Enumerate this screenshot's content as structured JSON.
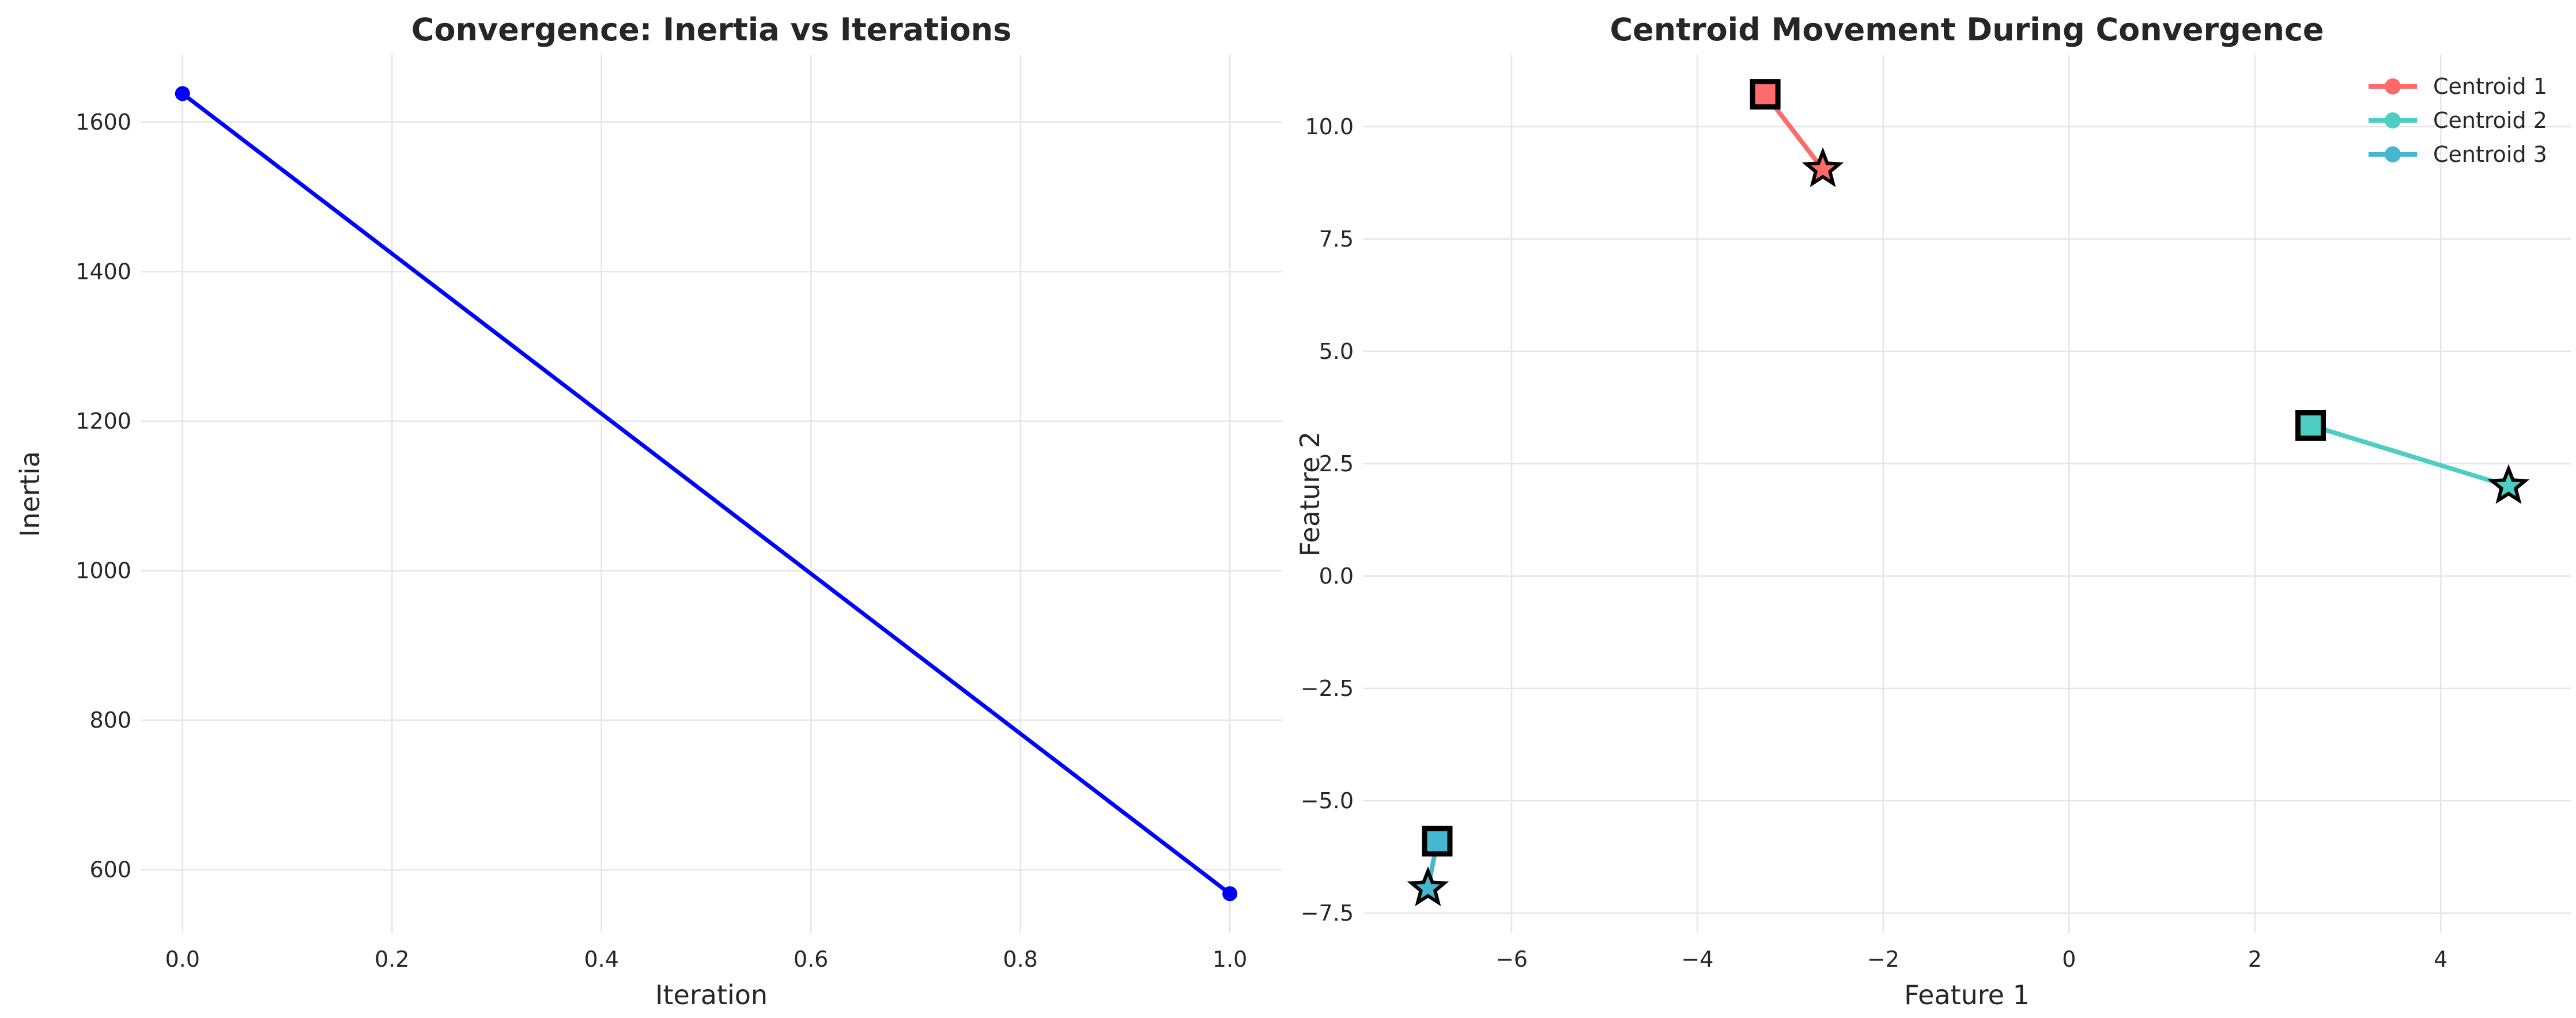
{
  "chart_data": [
    {
      "type": "line",
      "title": "Convergence: Inertia vs Iterations",
      "xlabel": "Iteration",
      "ylabel": "Inertia",
      "xlim": [
        -0.04,
        1.05
      ],
      "ylim": [
        515,
        1690
      ],
      "xticks": [
        "0.0",
        "0.2",
        "0.4",
        "0.6",
        "0.8",
        "1.0"
      ],
      "xtick_values": [
        0,
        0.2,
        0.4,
        0.6,
        0.8,
        1.0
      ],
      "yticks": [
        "600",
        "800",
        "1000",
        "1200",
        "1400",
        "1600"
      ],
      "ytick_values": [
        600,
        800,
        1000,
        1200,
        1400,
        1600
      ],
      "grid": true,
      "series": [
        {
          "color": "#0000ff",
          "marker": "circle",
          "x": [
            0,
            1
          ],
          "y": [
            1638,
            568
          ]
        }
      ]
    },
    {
      "type": "line",
      "title": "Centroid Movement During Convergence",
      "xlabel": "Feature 1",
      "ylabel": "Feature 2",
      "xlim": [
        -7.6,
        5.4
      ],
      "ylim": [
        -7.95,
        11.6
      ],
      "xticks": [
        "−6",
        "−4",
        "−2",
        "0",
        "2",
        "4"
      ],
      "xtick_values": [
        -6,
        -4,
        -2,
        0,
        2,
        4
      ],
      "yticks": [
        "−7.5",
        "−5.0",
        "−2.5",
        "0.0",
        "2.5",
        "5.0",
        "7.5",
        "10.0"
      ],
      "ytick_values": [
        -7.5,
        -5.0,
        -2.5,
        0.0,
        2.5,
        5.0,
        7.5,
        10.0
      ],
      "grid": true,
      "legend": "top-right",
      "start_marker": "star",
      "end_marker": "square",
      "series": [
        {
          "name": "Centroid 1",
          "color": "#ff6b6b",
          "x": [
            -2.65,
            -3.27
          ],
          "y": [
            9.05,
            10.72
          ]
        },
        {
          "name": "Centroid 2",
          "color": "#4ecdc4",
          "x": [
            4.73,
            2.6
          ],
          "y": [
            2.0,
            3.35
          ]
        },
        {
          "name": "Centroid 3",
          "color": "#45b7d1",
          "x": [
            -6.9,
            -6.8
          ],
          "y": [
            -6.95,
            -5.9
          ]
        }
      ]
    }
  ]
}
